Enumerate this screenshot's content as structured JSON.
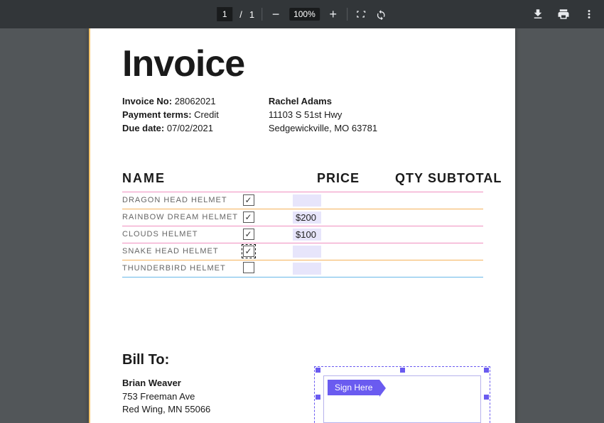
{
  "viewer": {
    "current_page": "1",
    "total_pages": "1",
    "zoom": "100%"
  },
  "doc": {
    "title": "Invoice",
    "invoice_no_label": "Invoice No:",
    "invoice_no": "28062021",
    "terms_label": "Payment terms:",
    "terms": "Credit",
    "due_label": "Due date:",
    "due": "07/02/2021",
    "from_name": "Rachel Adams",
    "from_line1": "11103 S 51st Hwy",
    "from_line2": "Sedgewickville, MO 63781",
    "columns": {
      "name": "NAME",
      "price": "PRICE",
      "qty": "QTY",
      "subtotal": "SUBTOTAL"
    },
    "rows": [
      {
        "name": "DRAGON HEAD HELMET",
        "checked": true,
        "focus": false,
        "price": ""
      },
      {
        "name": "RAINBOW DREAM HELMET",
        "checked": true,
        "focus": false,
        "price": "$200"
      },
      {
        "name": "CLOUDS HELMET",
        "checked": true,
        "focus": false,
        "price": "$100"
      },
      {
        "name": "SNAKE HEAD HELMET",
        "checked": true,
        "focus": true,
        "price": ""
      },
      {
        "name": "THUNDERBIRD HELMET",
        "checked": false,
        "focus": false,
        "price": ""
      }
    ],
    "bill_to_heading": "Bill To:",
    "bill_name": "Brian Weaver",
    "bill_line1": "753 Freeman Ave",
    "bill_line2": "Red Wing, MN 55066",
    "sign_label": "Sign Here",
    "colors": {
      "accent": "#6a5bf0",
      "highlight": "#e7e5fb",
      "row_pink": "#f08fbf",
      "row_orange": "#f5b25a",
      "row_blue": "#69b9e8"
    }
  }
}
